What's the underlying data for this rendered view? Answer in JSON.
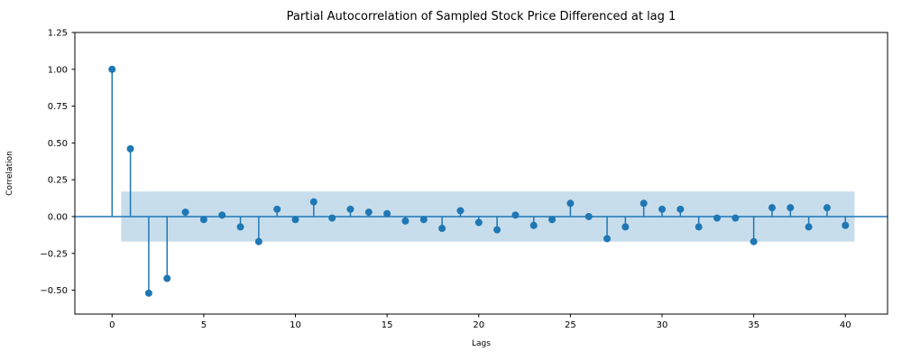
{
  "figure": {
    "title": "Partial Autocorrelation of Sampled Stock Price Differenced at lag 1",
    "xlabel": "Lags",
    "ylabel": "Correlation"
  },
  "chart_data": {
    "type": "stem",
    "title": "Partial Autocorrelation of Sampled Stock Price Differenced at lag 1",
    "xlabel": "Lags",
    "ylabel": "Correlation",
    "x": [
      0,
      1,
      2,
      3,
      4,
      5,
      6,
      7,
      8,
      9,
      10,
      11,
      12,
      13,
      14,
      15,
      16,
      17,
      18,
      19,
      20,
      21,
      22,
      23,
      24,
      25,
      26,
      27,
      28,
      29,
      30,
      31,
      32,
      33,
      34,
      35,
      36,
      37,
      38,
      39,
      40
    ],
    "values": [
      1.0,
      0.46,
      -0.52,
      -0.42,
      0.03,
      -0.02,
      0.01,
      -0.07,
      -0.17,
      0.05,
      -0.02,
      0.1,
      -0.01,
      0.05,
      0.03,
      0.02,
      -0.03,
      -0.02,
      -0.08,
      0.04,
      -0.04,
      -0.09,
      0.01,
      -0.06,
      -0.02,
      0.09,
      0.0,
      -0.15,
      -0.07,
      0.09,
      0.05,
      0.05,
      -0.07,
      -0.01,
      -0.01,
      -0.17,
      0.06,
      0.06,
      -0.07,
      0.06,
      -0.06
    ],
    "baseline": 0,
    "confidence_band": {
      "low": -0.17,
      "high": 0.17,
      "x_start": 0.5,
      "x_end": 40.5
    },
    "xticks": [
      0,
      5,
      10,
      15,
      20,
      25,
      30,
      35,
      40
    ],
    "xtick_labels": [
      "0",
      "5",
      "10",
      "15",
      "20",
      "25",
      "30",
      "35",
      "40"
    ],
    "yticks": [
      1.25,
      1.0,
      0.75,
      0.5,
      0.25,
      0.0,
      -0.25,
      -0.5
    ],
    "ytick_labels": [
      "1.25",
      "1.00",
      "0.75",
      "0.50",
      "0.25",
      "0.00",
      "−0.25",
      "−0.50"
    ],
    "xlim": [
      -2.03,
      42.3
    ],
    "ylim": [
      -0.662,
      1.25
    ],
    "grid": false,
    "legend": "none",
    "colors": {
      "stem": "#1f77b4",
      "marker": "#1f77b4",
      "band": "rgba(31,119,180,0.25)",
      "spine": "#000000",
      "tick": "#000000",
      "background": "#ffffff"
    }
  }
}
